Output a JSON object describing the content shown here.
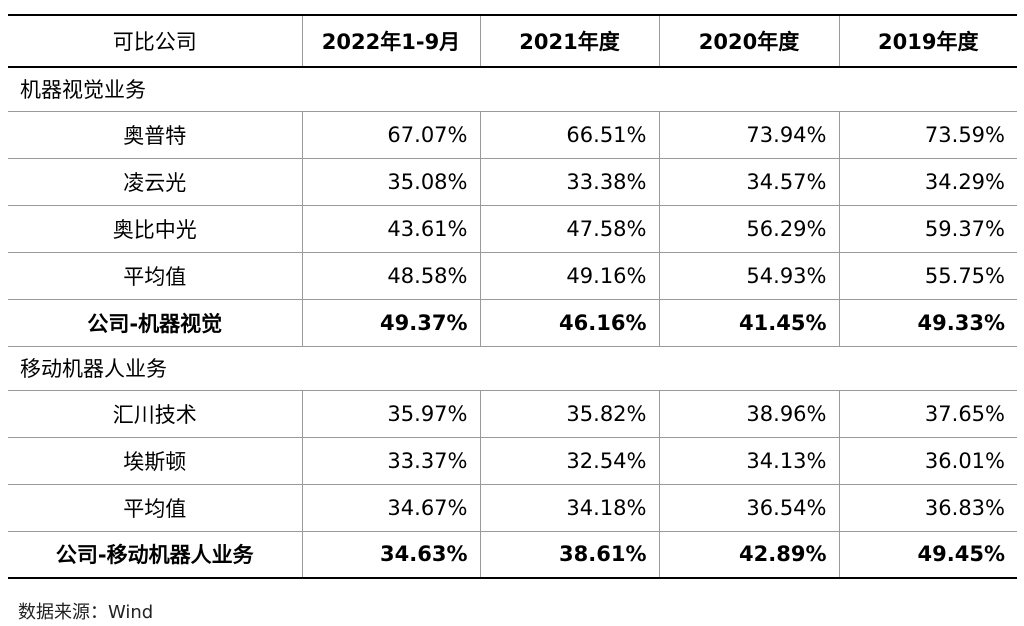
{
  "table": {
    "headers": [
      "可比公司",
      "2022年1-9月",
      "2021年度",
      "2020年度",
      "2019年度"
    ],
    "sections": [
      {
        "title": "机器视觉业务",
        "rows": [
          {
            "name": "奥普特",
            "values": [
              "67.07%",
              "66.51%",
              "73.94%",
              "73.59%"
            ]
          },
          {
            "name": "凌云光",
            "values": [
              "35.08%",
              "33.38%",
              "34.57%",
              "34.29%"
            ]
          },
          {
            "name": "奥比中光",
            "values": [
              "43.61%",
              "47.58%",
              "56.29%",
              "59.37%"
            ]
          },
          {
            "name": "平均值",
            "values": [
              "48.58%",
              "49.16%",
              "54.93%",
              "55.75%"
            ]
          },
          {
            "name": "公司-机器视觉",
            "values": [
              "49.37%",
              "46.16%",
              "41.45%",
              "49.33%"
            ]
          }
        ]
      },
      {
        "title": "移动机器人业务",
        "rows": [
          {
            "name": "汇川技术",
            "values": [
              "35.97%",
              "35.82%",
              "38.96%",
              "37.65%"
            ]
          },
          {
            "name": "埃斯顿",
            "values": [
              "33.37%",
              "32.54%",
              "34.13%",
              "36.01%"
            ]
          },
          {
            "name": "平均值",
            "values": [
              "34.67%",
              "34.18%",
              "36.54%",
              "36.83%"
            ]
          },
          {
            "name": "公司-移动机器人业务",
            "values": [
              "34.63%",
              "38.61%",
              "42.89%",
              "49.45%"
            ]
          }
        ]
      }
    ]
  },
  "source": "数据来源：Wind"
}
